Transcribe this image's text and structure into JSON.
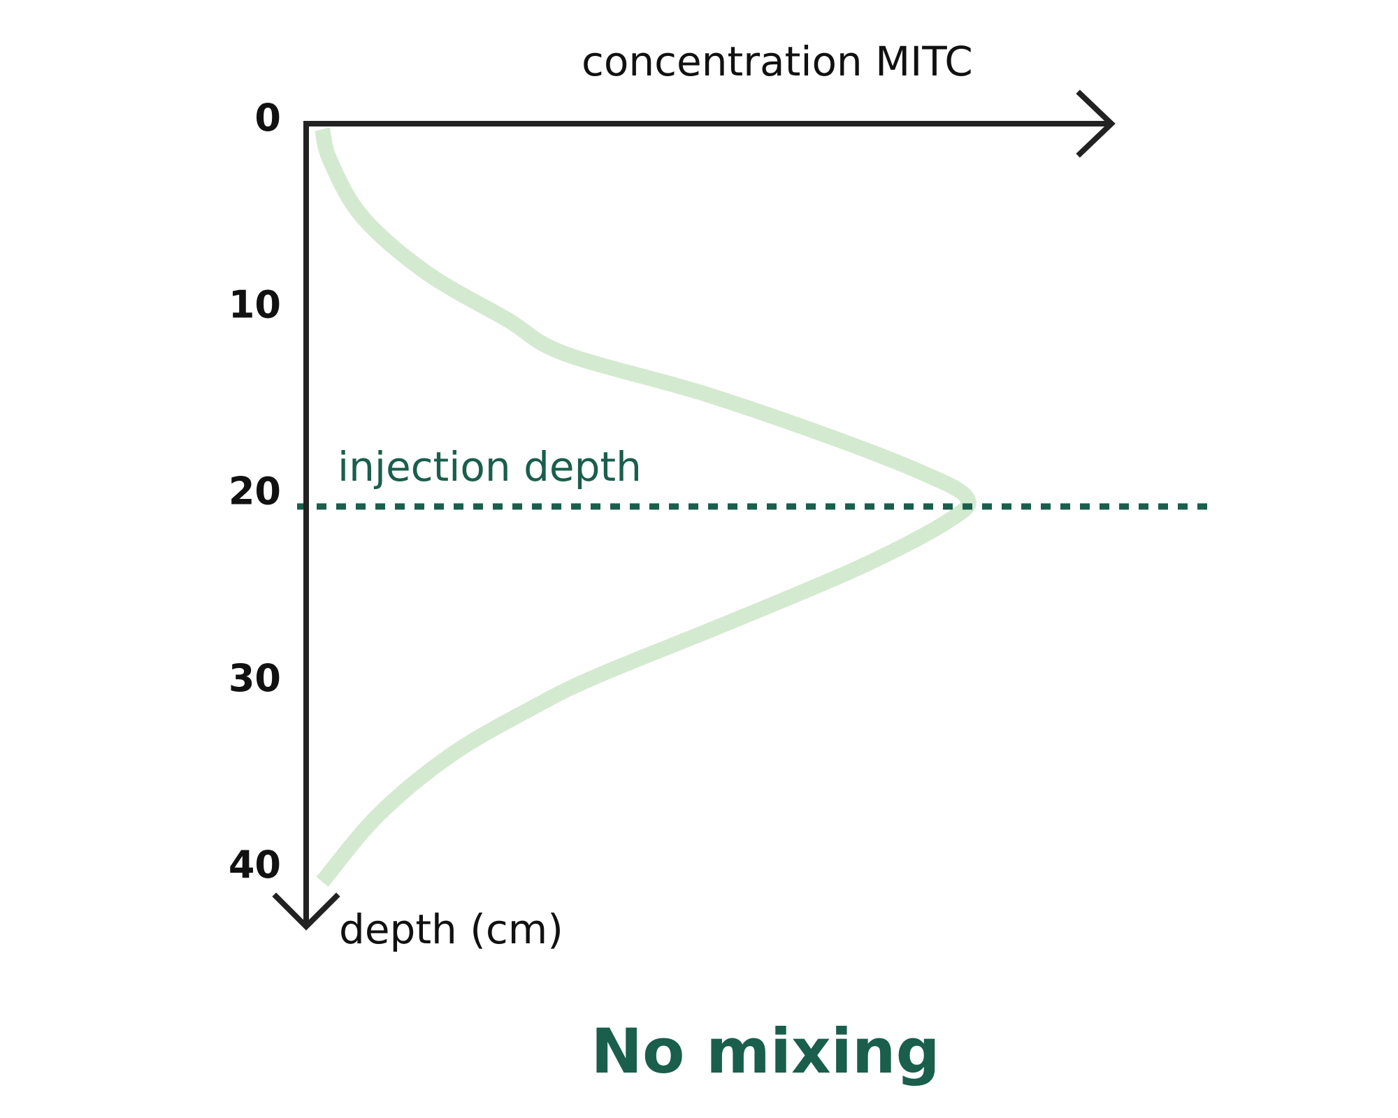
{
  "chart_data": {
    "type": "line",
    "title": "",
    "caption": "No mixing",
    "xlabel": "concentration MITC",
    "ylabel": "depth (cm)",
    "y_axis_inverted": true,
    "y_ticks": [
      "0",
      "10",
      "20",
      "30",
      "40"
    ],
    "ylim": [
      0,
      40
    ],
    "xlim": [
      0,
      1
    ],
    "annotation": {
      "label": "injection depth",
      "depth": 20.5
    },
    "series": [
      {
        "color": "#d4ead0",
        "points": [
          {
            "x": 0.02,
            "y": 0.3
          },
          {
            "x": 0.03,
            "y": 2
          },
          {
            "x": 0.07,
            "y": 5
          },
          {
            "x": 0.15,
            "y": 8
          },
          {
            "x": 0.25,
            "y": 10.5
          },
          {
            "x": 0.32,
            "y": 12.3
          },
          {
            "x": 0.49,
            "y": 14.4
          },
          {
            "x": 0.64,
            "y": 16.6
          },
          {
            "x": 0.76,
            "y": 18.6
          },
          {
            "x": 0.82,
            "y": 20.0
          },
          {
            "x": 0.8,
            "y": 21.2
          },
          {
            "x": 0.69,
            "y": 23.7
          },
          {
            "x": 0.52,
            "y": 26.8
          },
          {
            "x": 0.36,
            "y": 29.6
          },
          {
            "x": 0.28,
            "y": 31.3
          },
          {
            "x": 0.18,
            "y": 33.8
          },
          {
            "x": 0.09,
            "y": 37
          },
          {
            "x": 0.02,
            "y": 40.6
          }
        ]
      }
    ]
  }
}
